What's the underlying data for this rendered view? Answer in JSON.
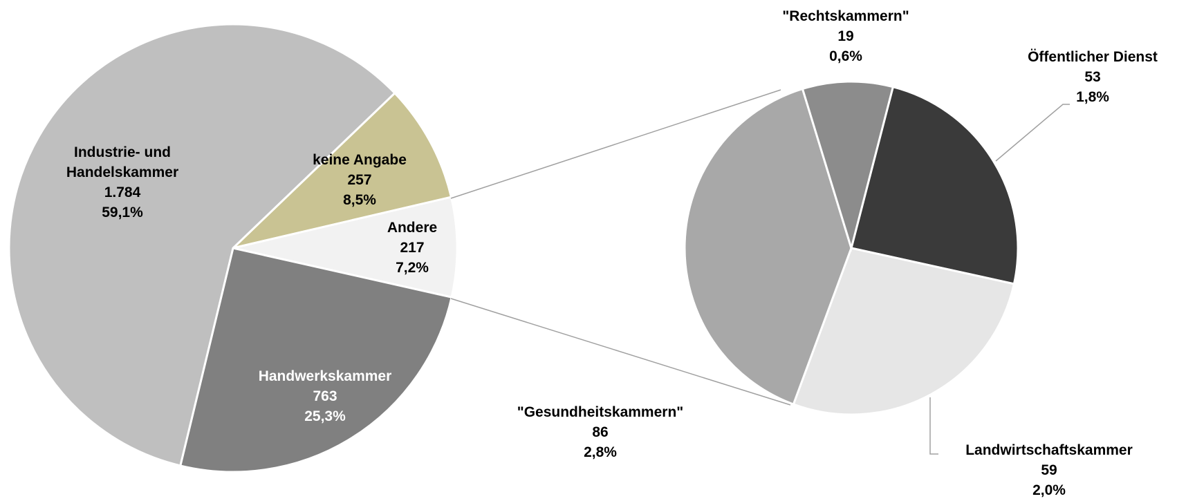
{
  "chart_data": [
    {
      "type": "pie",
      "categories": [
        "keine Angabe",
        "Andere",
        "Handwerkskammer",
        "Industrie- und Handelskammer"
      ],
      "values": [
        257,
        217,
        763,
        1784
      ],
      "value_labels": [
        "257",
        "217",
        "763",
        "1.784"
      ],
      "percent_labels": [
        "8,5%",
        "7,2%",
        "25,3%",
        "59,1%"
      ],
      "colors": [
        "#c9c393",
        "#f2f2f2",
        "#808080",
        "#bfbfbf"
      ]
    },
    {
      "type": "pie",
      "categories": [
        "Öffentlicher Dienst",
        "Landwirtschaftskammer",
        "\"Gesundheitskammern\"",
        "\"Rechtskammern\""
      ],
      "values": [
        53,
        59,
        86,
        19
      ],
      "value_labels": [
        "53",
        "59",
        "86",
        "19"
      ],
      "percent_labels": [
        "1,8%",
        "2,0%",
        "2,8%",
        "0,6%"
      ],
      "colors": [
        "#3a3a3a",
        "#e6e6e6",
        "#a8a8a8",
        "#8c8c8c"
      ]
    }
  ]
}
